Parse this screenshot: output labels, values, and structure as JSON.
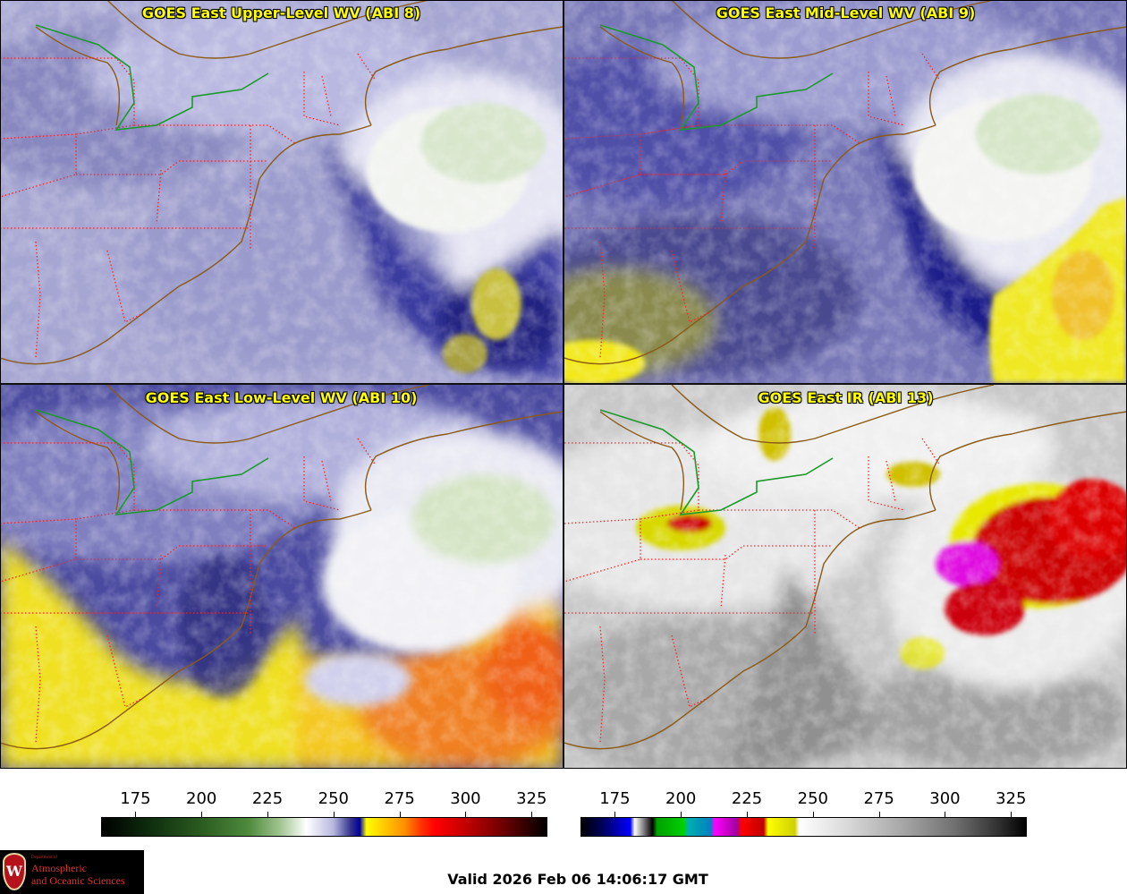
{
  "panels": [
    {
      "title": "GOES East Upper-Level WV (ABI 8)"
    },
    {
      "title": "GOES East Mid-Level WV (ABI 9)"
    },
    {
      "title": "GOES East Low-Level WV (ABI 10)"
    },
    {
      "title": "GOES East IR (ABI 13)"
    }
  ],
  "colorbars": [
    {
      "ticks": [
        "175",
        "200",
        "225",
        "250",
        "275",
        "300",
        "325"
      ]
    },
    {
      "ticks": [
        "175",
        "200",
        "225",
        "250",
        "275",
        "300",
        "325"
      ]
    }
  ],
  "logo": {
    "dept": "Department of",
    "line1": "Atmospheric",
    "line2": "and Oceanic Sciences",
    "shield_letter": "W"
  },
  "valid_time": "Valid 2026 Feb 06 14:06:17 GMT",
  "colors": {
    "title_text": "#ffff00",
    "state_borders": "#ff2020",
    "coastlines": "#8b5a14",
    "intl_border": "#1a9a2a"
  }
}
